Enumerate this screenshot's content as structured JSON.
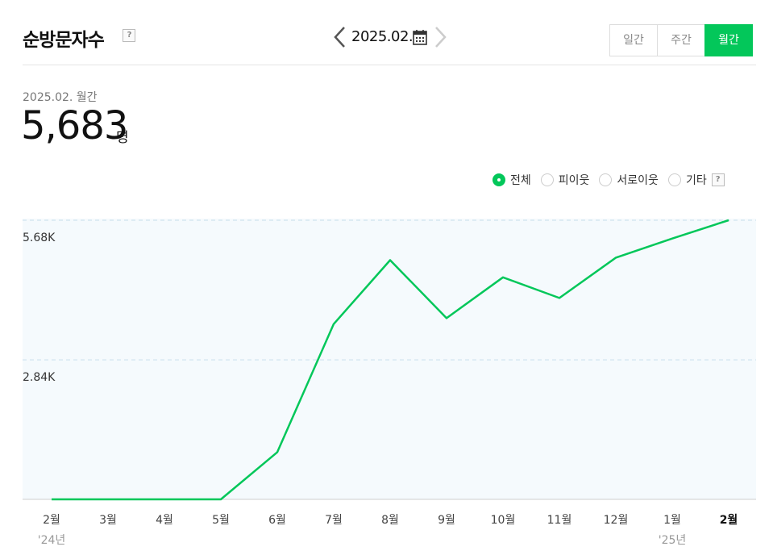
{
  "header": {
    "title": "순방문자수",
    "help_label": "?",
    "date_label": "2025.02.",
    "icons": {
      "prev": "chevron-left-icon",
      "next": "chevron-right-icon",
      "calendar": "calendar-icon"
    },
    "period_tabs": [
      {
        "label": "일간",
        "active": false
      },
      {
        "label": "주간",
        "active": false
      },
      {
        "label": "월간",
        "active": true
      }
    ]
  },
  "summary": {
    "date": "2025.02. 월간",
    "value": "5,683",
    "unit": "명"
  },
  "filters": {
    "options": [
      {
        "label": "전체",
        "checked": true
      },
      {
        "label": "피이웃",
        "checked": false
      },
      {
        "label": "서로이웃",
        "checked": false
      },
      {
        "label": "기타",
        "checked": false
      }
    ],
    "help_label": "?"
  },
  "colors": {
    "accent": "#03c75a",
    "plot_bg": "#f5fafd",
    "gridline": "#d7e8f2"
  },
  "chart_data": {
    "type": "line",
    "categories": [
      "2월",
      "3월",
      "4월",
      "5월",
      "6월",
      "7월",
      "8월",
      "9월",
      "10월",
      "11월",
      "12월",
      "1월",
      "2월"
    ],
    "category_bold_last": true,
    "year_labels": [
      {
        "index": 0,
        "label": "'24년"
      },
      {
        "index": 11,
        "label": "'25년"
      }
    ],
    "values": [
      0,
      0,
      0,
      0,
      960,
      3570,
      4870,
      3690,
      4520,
      4100,
      4920,
      5310,
      5683
    ],
    "yticks": [
      {
        "value": 2840,
        "label": "2.84K"
      },
      {
        "value": 5683,
        "label": "5.68K"
      }
    ],
    "ylim": [
      0,
      5683
    ],
    "grid": true
  }
}
